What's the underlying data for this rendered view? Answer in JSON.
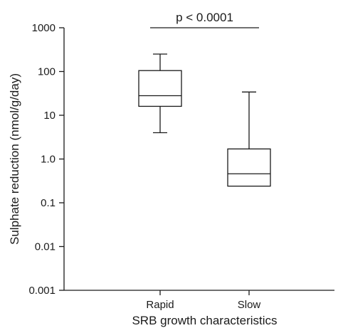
{
  "chart_data": {
    "type": "box",
    "xlabel": "SRB growth characteristics",
    "ylabel": "Sulphate reduction (nmol/g/day)",
    "yscale": "log",
    "ylim": [
      0.001,
      1000
    ],
    "yticks": [
      {
        "value": 0.001,
        "label": "0.001"
      },
      {
        "value": 0.01,
        "label": "0.01"
      },
      {
        "value": 0.1,
        "label": "0.1"
      },
      {
        "value": 1,
        "label": "1.0"
      },
      {
        "value": 10,
        "label": "10"
      },
      {
        "value": 100,
        "label": "100"
      },
      {
        "value": 1000,
        "label": "1000"
      }
    ],
    "categories": [
      "Rapid",
      "Slow"
    ],
    "boxes": [
      {
        "category": "Rapid",
        "whisker_low": 4,
        "q1": 16,
        "median": 28,
        "q3": 105,
        "whisker_high": 250
      },
      {
        "category": "Slow",
        "whisker_low": 0.24,
        "q1": 0.24,
        "median": 0.46,
        "q3": 1.7,
        "whisker_high": 34
      }
    ],
    "annotation": {
      "text": "p < 0.0001",
      "between": [
        "Rapid",
        "Slow"
      ],
      "y": 1000
    },
    "grid": false,
    "legend": "none"
  }
}
